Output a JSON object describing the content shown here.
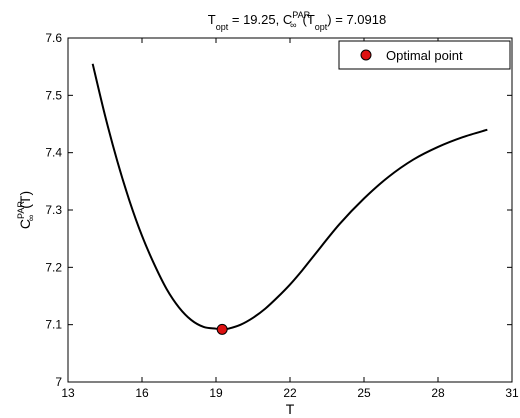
{
  "chart_data": {
    "type": "line",
    "title": {
      "parts": [
        "T",
        "opt",
        " = 19.25, C",
        "PAR",
        "∞",
        "(T",
        "opt",
        ") = 7.0918"
      ]
    },
    "xlabel": "T",
    "ylabel": {
      "parts": [
        "C",
        "PAR",
        "∞",
        "(T)"
      ]
    },
    "xlim": [
      13,
      31
    ],
    "ylim": [
      7.0,
      7.6
    ],
    "xticks": [
      13,
      16,
      19,
      22,
      25,
      28,
      31
    ],
    "yticks": [
      7.0,
      7.1,
      7.2,
      7.3,
      7.4,
      7.5,
      7.6
    ],
    "xtick_labels": [
      "13",
      "16",
      "19",
      "22",
      "25",
      "28",
      "31"
    ],
    "ytick_labels": [
      "7",
      "7.1",
      "7.2",
      "7.3",
      "7.4",
      "7.5",
      "7.6"
    ],
    "grid": false,
    "legend_position": "top-right",
    "curve_color": "#000000",
    "marker_color": "#dd1111",
    "series": [
      {
        "x": [
          14.0,
          14.5,
          15.0,
          15.5,
          16.0,
          16.5,
          17.0,
          17.5,
          18.0,
          18.5,
          19.0,
          19.25,
          19.5,
          20.0,
          20.5,
          21.0,
          21.5,
          22.0,
          22.5,
          23.0,
          24.0,
          25.0,
          26.0,
          27.0,
          28.0,
          29.0,
          30.0
        ],
        "y": [
          7.555,
          7.465,
          7.385,
          7.315,
          7.255,
          7.205,
          7.162,
          7.13,
          7.108,
          7.096,
          7.093,
          7.0918,
          7.093,
          7.1,
          7.112,
          7.128,
          7.148,
          7.17,
          7.195,
          7.222,
          7.275,
          7.32,
          7.358,
          7.388,
          7.41,
          7.427,
          7.44
        ]
      }
    ],
    "points": [
      {
        "name": "Optimal point",
        "x": 19.25,
        "y": 7.0918
      }
    ]
  }
}
